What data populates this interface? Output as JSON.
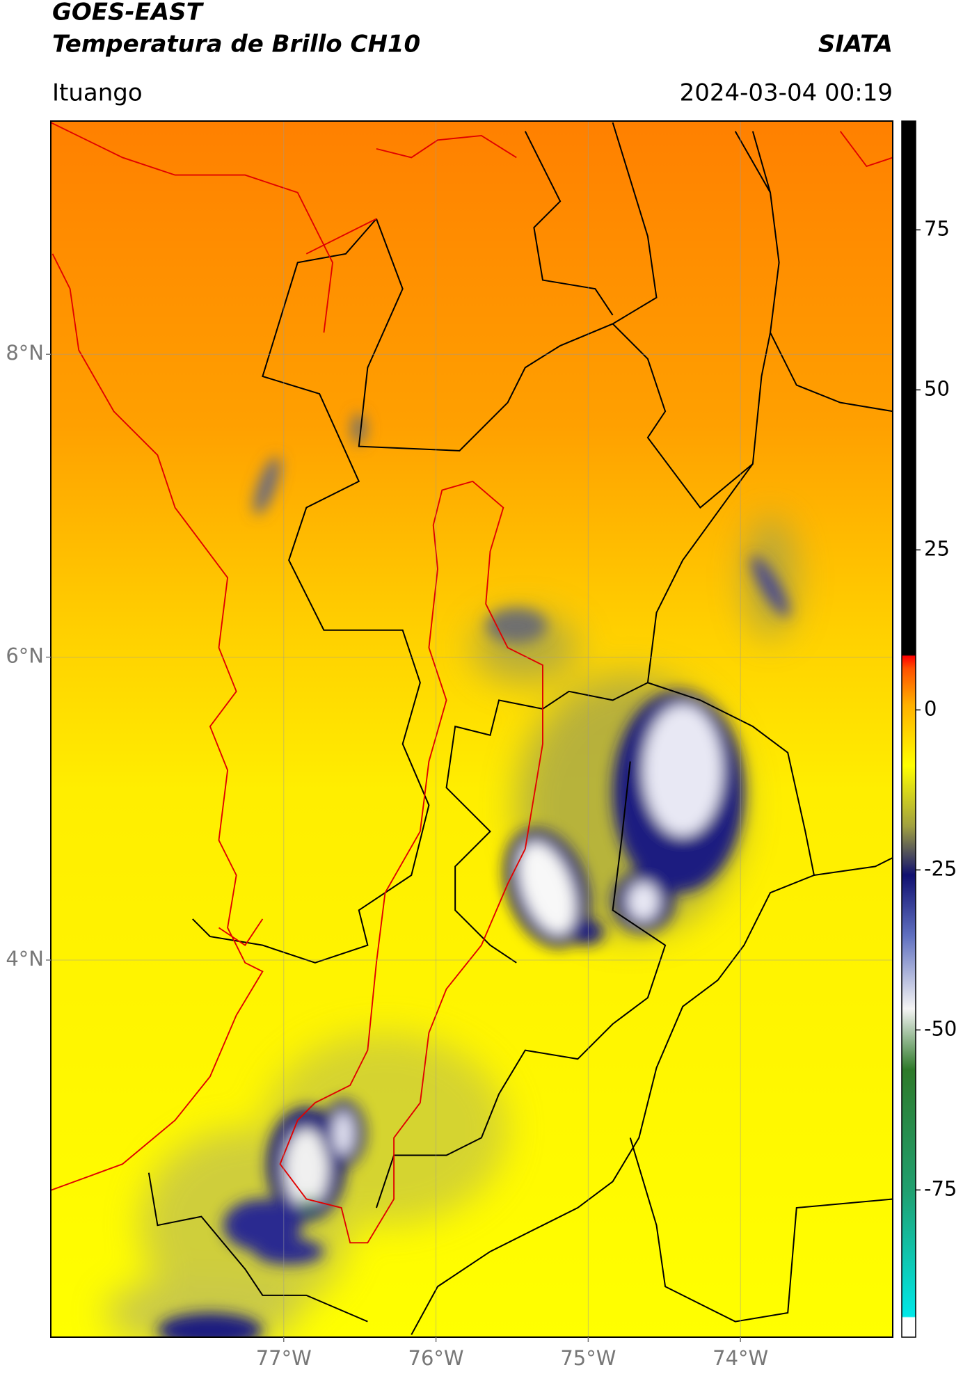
{
  "header": {
    "title": "GOES-EAST",
    "subtitle": "Temperatura de Brillo CH10",
    "brand": "SIATA",
    "location": "Ituango",
    "datetime": "2024-03-04 00:19"
  },
  "map": {
    "xlim": [
      -78.53,
      -73.0
    ],
    "ylim": [
      1.51,
      9.54
    ],
    "xticks": [
      {
        "value": -77,
        "label": "77°W"
      },
      {
        "value": -76,
        "label": "76°W"
      },
      {
        "value": -75,
        "label": "75°W"
      },
      {
        "value": -74,
        "label": "74°W"
      }
    ],
    "yticks": [
      {
        "value": 4,
        "label": "4°N"
      },
      {
        "value": 6,
        "label": "6°N"
      },
      {
        "value": 8,
        "label": "8°N"
      }
    ],
    "grid": true
  },
  "colorbar": {
    "ylim": [
      -98,
      92
    ],
    "yticks": [
      -75,
      -50,
      -25,
      0,
      25,
      50,
      75
    ]
  }
}
